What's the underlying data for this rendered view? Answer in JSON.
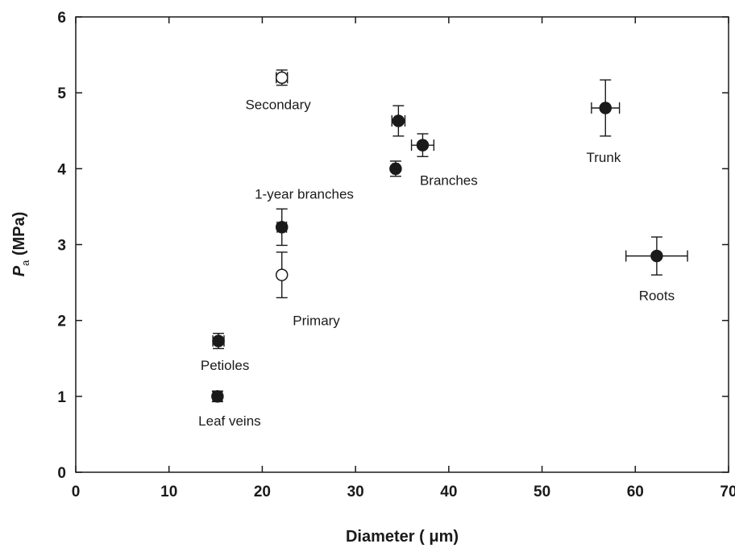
{
  "chart_data": {
    "type": "scatter",
    "xlabel": "Diameter (  μm)",
    "ylabel_main": "P",
    "ylabel_sub": "a",
    "ylabel_unit": " (MPa)",
    "xlim": [
      0,
      70
    ],
    "ylim": [
      0,
      6
    ],
    "xticks": [
      0,
      10,
      20,
      30,
      40,
      50,
      60,
      70
    ],
    "yticks": [
      0,
      1,
      2,
      3,
      4,
      5,
      6
    ],
    "grid": false,
    "colors": {
      "filled": "#1a1a1a",
      "open": "#ffffff",
      "axis": "#1a1a1a"
    },
    "points": [
      {
        "x": 15.2,
        "y": 1.0,
        "xerr": 0.5,
        "yerr": 0.07,
        "filled": true
      },
      {
        "x": 15.3,
        "y": 1.73,
        "xerr": 0.6,
        "yerr": 0.1,
        "filled": true
      },
      {
        "x": 22.1,
        "y": 2.6,
        "xerr": 0.0,
        "yerr": 0.3,
        "filled": false
      },
      {
        "x": 22.1,
        "y": 3.23,
        "xerr": 0.5,
        "yerr": 0.24,
        "filled": true
      },
      {
        "x": 22.1,
        "y": 5.2,
        "xerr": 0.6,
        "yerr": 0.1,
        "filled": false
      },
      {
        "x": 34.3,
        "y": 4.0,
        "xerr": 0.3,
        "yerr": 0.1,
        "filled": true
      },
      {
        "x": 34.6,
        "y": 4.63,
        "xerr": 0.7,
        "yerr": 0.2,
        "filled": true
      },
      {
        "x": 37.2,
        "y": 4.31,
        "xerr": 1.2,
        "yerr": 0.15,
        "filled": true
      },
      {
        "x": 56.8,
        "y": 4.8,
        "xerr": 1.5,
        "yerr": 0.37,
        "filled": true
      },
      {
        "x": 62.3,
        "y": 2.85,
        "xerr": 3.3,
        "yerr": 0.25,
        "filled": true
      }
    ],
    "annotations": [
      {
        "text": "Leaf veins",
        "x": 16.5,
        "y": 0.68
      },
      {
        "text": "Petioles",
        "x": 16.0,
        "y": 1.41
      },
      {
        "text": "Primary",
        "x": 25.8,
        "y": 2.0
      },
      {
        "text": "1-year branches",
        "x": 24.5,
        "y": 3.67
      },
      {
        "text": "Secondary",
        "x": 21.7,
        "y": 4.85
      },
      {
        "text": "Branches",
        "x": 40.0,
        "y": 3.85
      },
      {
        "text": "Trunk",
        "x": 56.6,
        "y": 4.15
      },
      {
        "text": "Roots",
        "x": 62.3,
        "y": 2.33
      }
    ]
  }
}
